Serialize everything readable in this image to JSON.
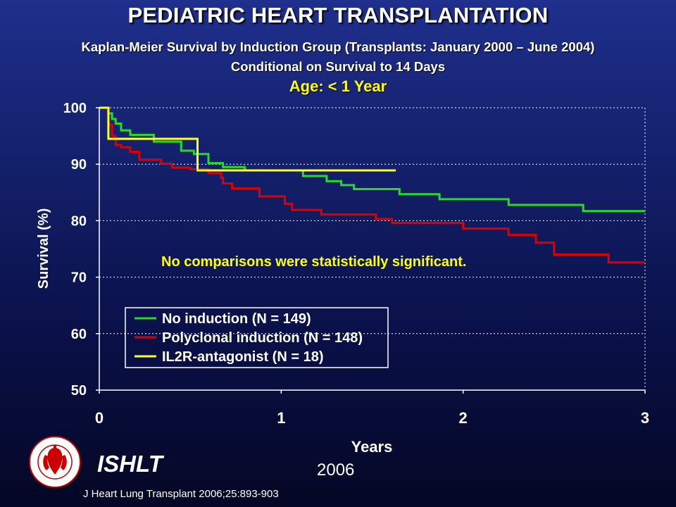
{
  "header": {
    "title": "PEDIATRIC HEART TRANSPLANTATION",
    "subtitle_line1": "Kaplan-Meier Survival by Induction Group (Transplants: January 2000 – June 2004)",
    "subtitle_line2": "Conditional on Survival to 14 Days",
    "age_group": "Age: < 1 Year"
  },
  "footer": {
    "org": "ISHLT",
    "year": "2006",
    "citation": "J Heart Lung Transplant 2006;25:893-903"
  },
  "colors": {
    "no_induction": "#22dd22",
    "polyclonal": "#dd0000",
    "il2r": "#ffff22",
    "annotation": "#ffff00",
    "plot_background": "#ffffff"
  },
  "chart_data": {
    "type": "line",
    "step": true,
    "xlabel": "Years",
    "ylabel": "Survival (%)",
    "xlim": [
      0,
      3
    ],
    "ylim": [
      50,
      100
    ],
    "x_ticks": [
      0,
      1,
      2,
      3
    ],
    "y_ticks": [
      50,
      60,
      70,
      80,
      90,
      100
    ],
    "grid": "horizontal dashed",
    "legend_position": "lower-left",
    "annotation": "No comparisons were statistically significant.",
    "series": [
      {
        "name": "No induction (N = 149)",
        "color": "#22dd22",
        "points": [
          [
            0,
            100
          ],
          [
            0.03,
            100
          ],
          [
            0.05,
            99
          ],
          [
            0.07,
            98
          ],
          [
            0.09,
            97.2
          ],
          [
            0.12,
            96
          ],
          [
            0.17,
            95.2
          ],
          [
            0.3,
            94
          ],
          [
            0.45,
            92.4
          ],
          [
            0.52,
            91.8
          ],
          [
            0.6,
            90.2
          ],
          [
            0.68,
            89.5
          ],
          [
            0.8,
            88.9
          ],
          [
            1.12,
            87.9
          ],
          [
            1.25,
            87
          ],
          [
            1.33,
            86.3
          ],
          [
            1.4,
            85.6
          ],
          [
            1.65,
            84.7
          ],
          [
            1.87,
            83.8
          ],
          [
            2.25,
            82.8
          ],
          [
            2.66,
            81.7
          ],
          [
            3,
            81.7
          ]
        ]
      },
      {
        "name": "Polyclonal induction (N = 148)",
        "color": "#dd0000",
        "points": [
          [
            0,
            100
          ],
          [
            0.03,
            100
          ],
          [
            0.05,
            97
          ],
          [
            0.07,
            95
          ],
          [
            0.09,
            93.4
          ],
          [
            0.12,
            93
          ],
          [
            0.17,
            92.2
          ],
          [
            0.22,
            90.8
          ],
          [
            0.34,
            90.1
          ],
          [
            0.4,
            89.4
          ],
          [
            0.5,
            89.1
          ],
          [
            0.6,
            88.4
          ],
          [
            0.67,
            87.6
          ],
          [
            0.68,
            86.6
          ],
          [
            0.73,
            85.7
          ],
          [
            0.88,
            84.3
          ],
          [
            1.02,
            83
          ],
          [
            1.06,
            81.9
          ],
          [
            1.22,
            81.1
          ],
          [
            1.52,
            80.3
          ],
          [
            1.61,
            79.6
          ],
          [
            2.0,
            78.6
          ],
          [
            2.25,
            77.5
          ],
          [
            2.4,
            76.1
          ],
          [
            2.5,
            74
          ],
          [
            2.8,
            72.6
          ],
          [
            3,
            72.6
          ]
        ]
      },
      {
        "name": "IL2R-antagonist (N = 18)",
        "color": "#ffff22",
        "points": [
          [
            0,
            100
          ],
          [
            0.04,
            100
          ],
          [
            0.05,
            94.5
          ],
          [
            0.53,
            94.5
          ],
          [
            0.54,
            88.9
          ],
          [
            1.63,
            88.9
          ]
        ]
      }
    ]
  }
}
